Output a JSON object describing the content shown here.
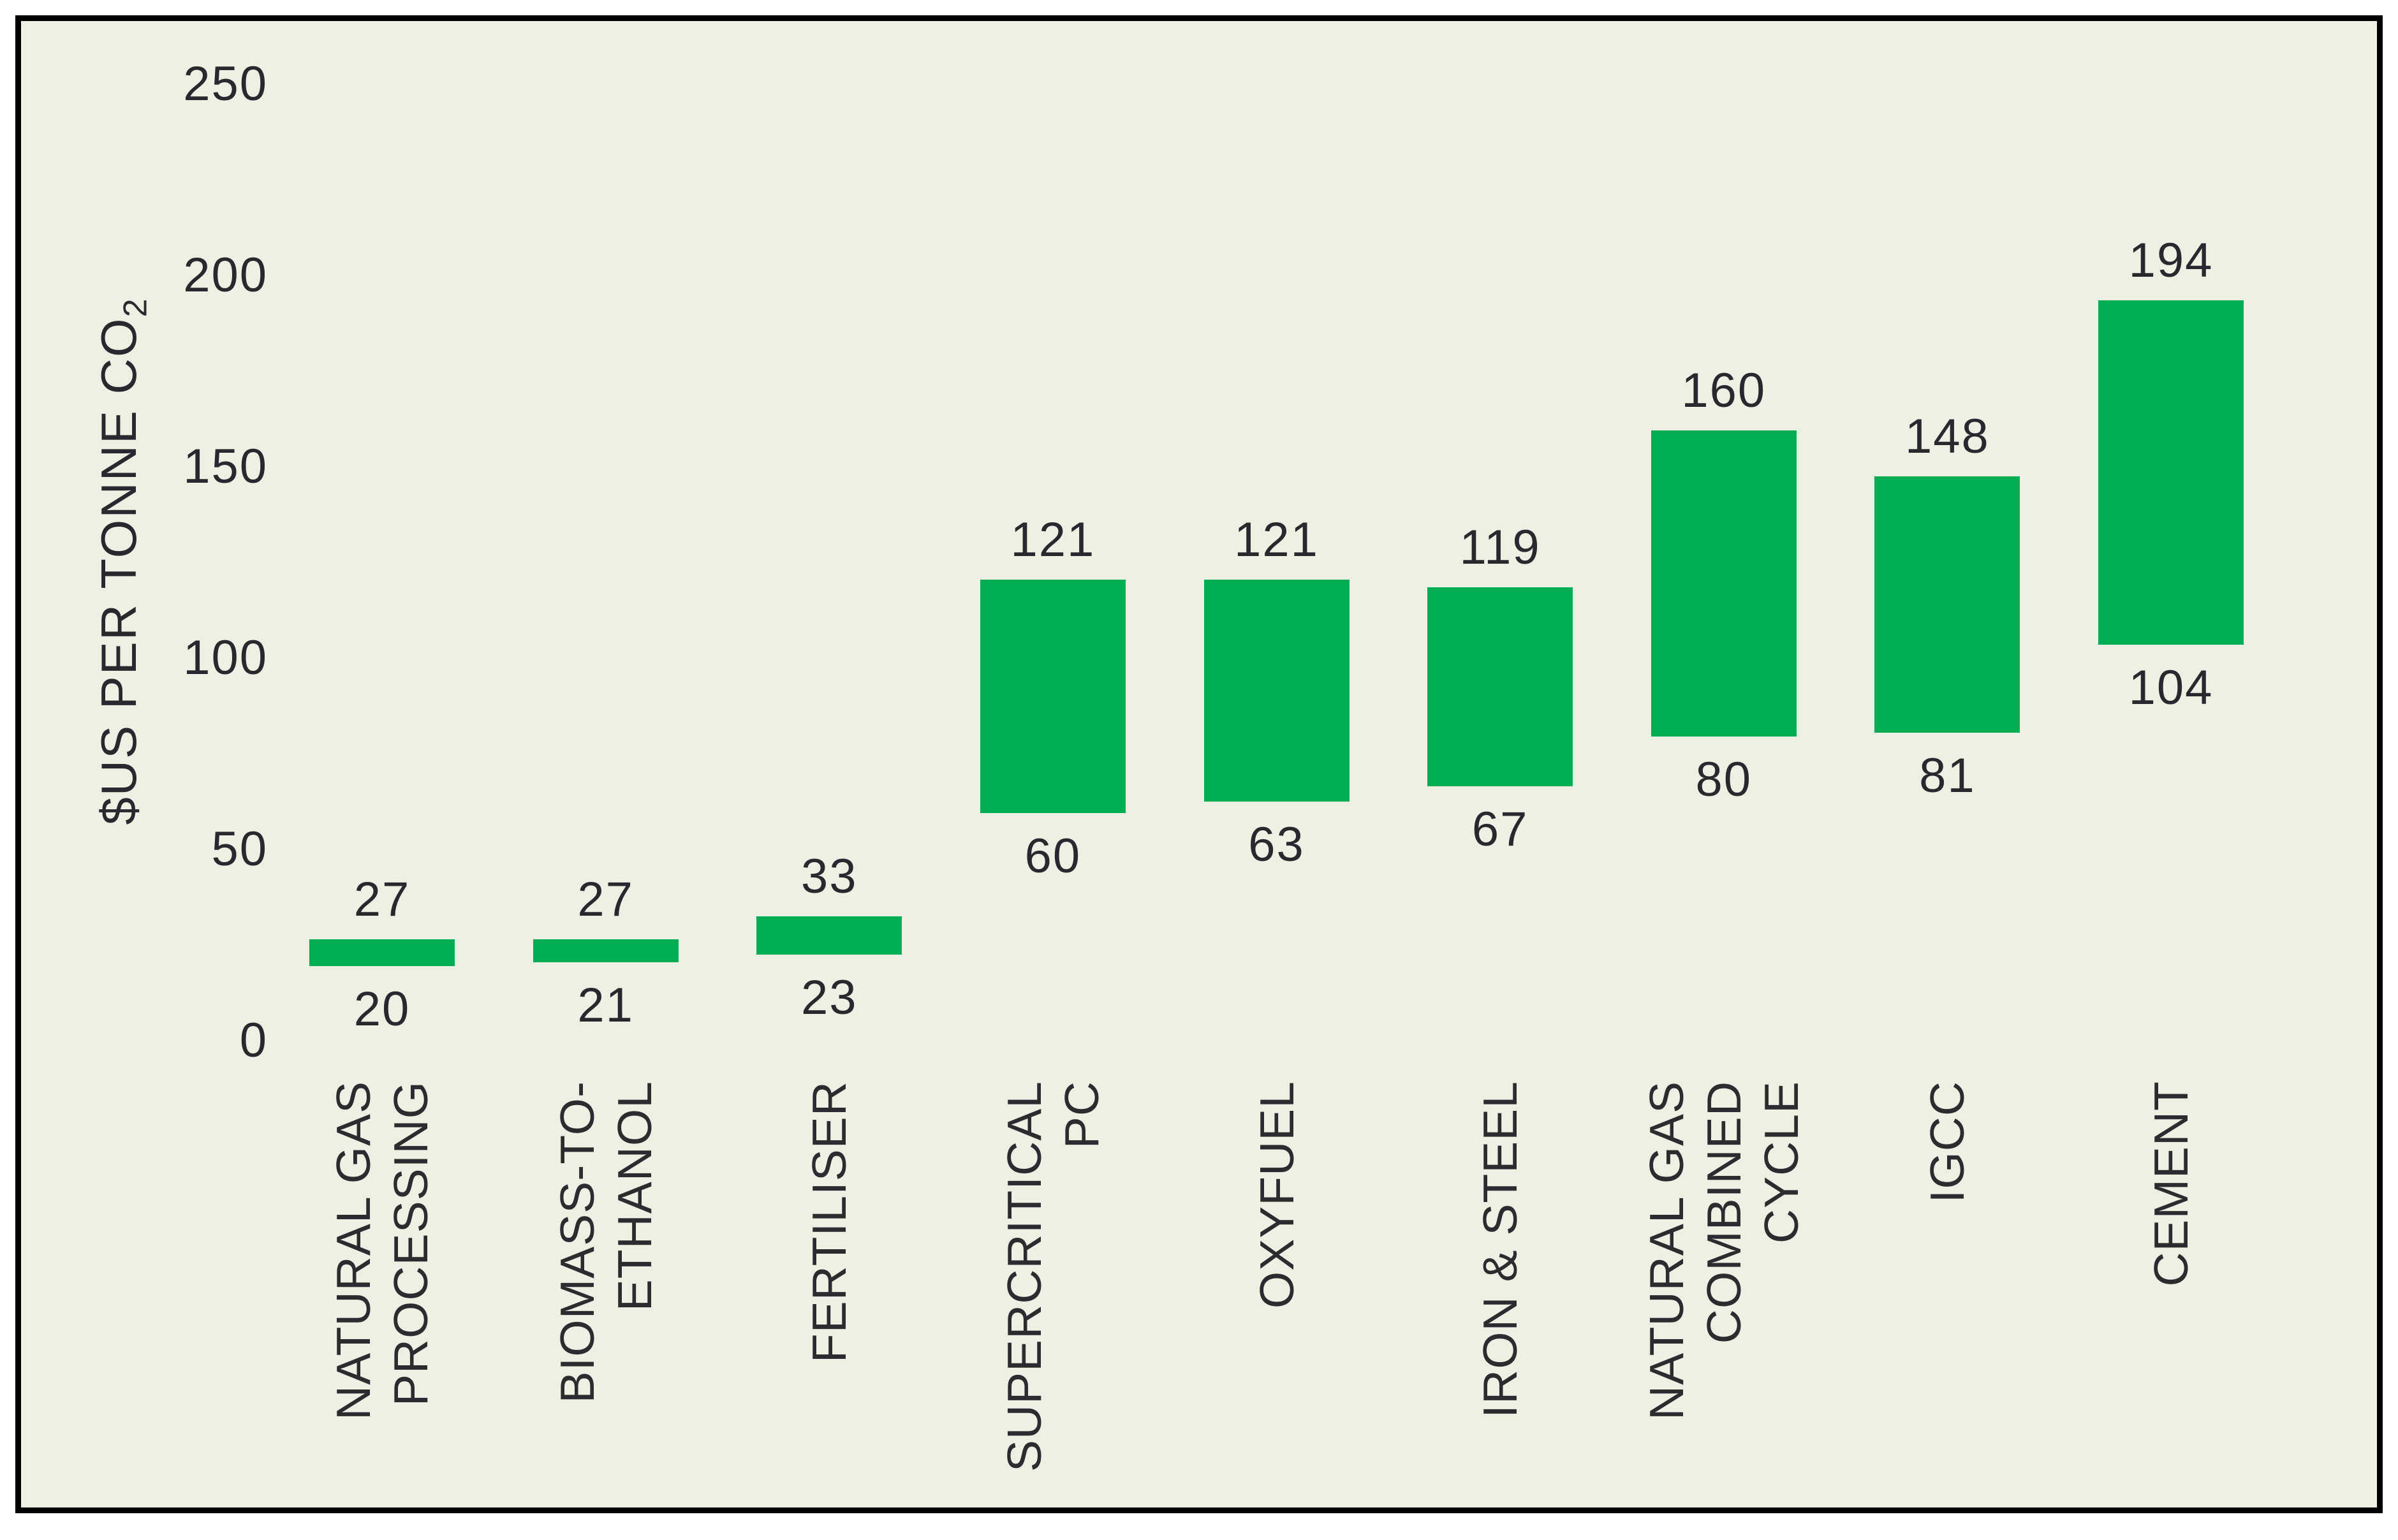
{
  "page": {
    "background": "#ffffff",
    "frame_border_color": "#000000",
    "frame_background": "#eef0e3"
  },
  "chart_data": {
    "type": "bar",
    "subtype": "floating-range-columns",
    "title": "",
    "xlabel": "",
    "ylabel": "$US PER TONNE CO₂",
    "ylabel_text": "$US PER TONNE CO",
    "ylabel_sub": "2",
    "ylim": [
      0,
      250
    ],
    "yticks": [
      0,
      50,
      100,
      150,
      200,
      250
    ],
    "grid": false,
    "legend": false,
    "axis_lines": false,
    "bar_color": "#00ad55",
    "text_color": "#28282e",
    "categories": [
      "NATURAL GAS PROCESSING",
      "BIOMASS-TO-ETHANOL",
      "FERTILISER",
      "SUPERCRITICAL PC",
      "OXYFUEL",
      "IRON & STEEL",
      "NATURAL GAS COMBINED CYCLE",
      "IGCC",
      "CEMENT"
    ],
    "bars": [
      {
        "category": "NATURAL GAS PROCESSING",
        "lines": [
          "NATURAL GAS",
          "PROCESSING"
        ],
        "min": 20,
        "max": 27
      },
      {
        "category": "BIOMASS-TO-ETHANOL",
        "lines": [
          "BIOMASS-TO-",
          "ETHANOL"
        ],
        "min": 21,
        "max": 27
      },
      {
        "category": "FERTILISER",
        "lines": [
          "FERTILISER"
        ],
        "min": 23,
        "max": 33
      },
      {
        "category": "SUPERCRITICAL PC",
        "lines": [
          "SUPERCRITICAL",
          "PC"
        ],
        "min": 60,
        "max": 121
      },
      {
        "category": "OXYFUEL",
        "lines": [
          "OXYFUEL"
        ],
        "min": 63,
        "max": 121
      },
      {
        "category": "IRON & STEEL",
        "lines": [
          "IRON & STEEL"
        ],
        "min": 67,
        "max": 119
      },
      {
        "category": "NATURAL GAS COMBINED CYCLE",
        "lines": [
          "NATURAL GAS",
          "COMBINED",
          "CYCLE"
        ],
        "min": 80,
        "max": 160
      },
      {
        "category": "IGCC",
        "lines": [
          "IGCC"
        ],
        "min": 81,
        "max": 148
      },
      {
        "category": "CEMENT",
        "lines": [
          "CEMENT"
        ],
        "min": 104,
        "max": 194
      }
    ]
  }
}
